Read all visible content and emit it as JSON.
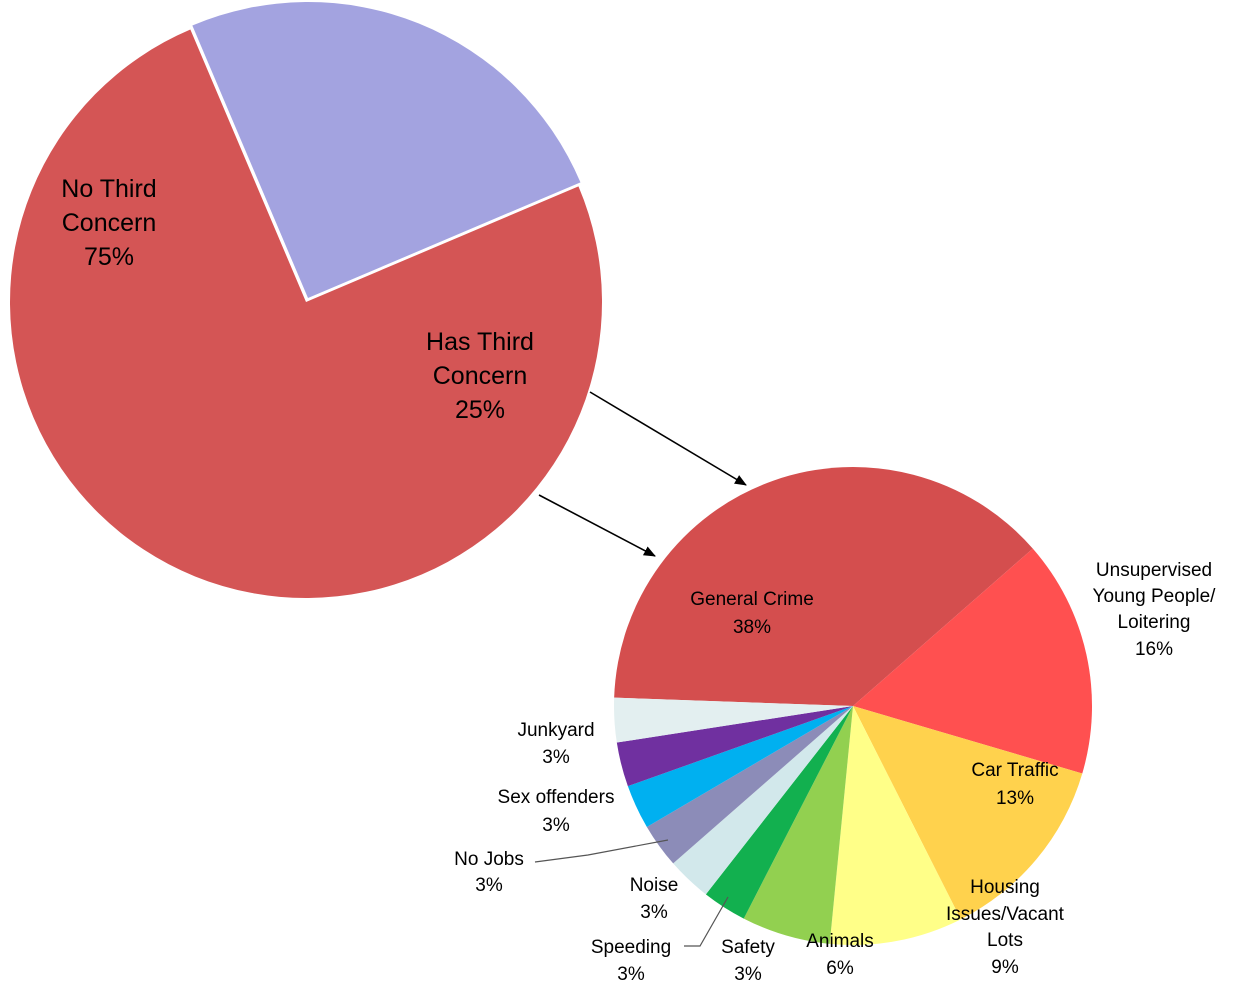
{
  "chart_data": [
    {
      "type": "pie",
      "title": "",
      "slices": [
        {
          "label": "No Third Concern",
          "value": 75,
          "value_label": "75%",
          "color": "#D45555"
        },
        {
          "label": "Has Third Concern",
          "value": 25,
          "value_label": "25%",
          "color": "#A3A3E0"
        }
      ],
      "exploded_slice": "Has Third Concern"
    },
    {
      "type": "pie",
      "title": "",
      "slices": [
        {
          "label": "General Crime",
          "value": 38,
          "value_label": "38%",
          "color": "#D44E4E"
        },
        {
          "label": "Unsupervised Young People/ Loitering",
          "value": 16,
          "value_label": "16%",
          "color": "#FF5050"
        },
        {
          "label": "Car Traffic",
          "value": 13,
          "value_label": "13%",
          "color": "#FFD24D"
        },
        {
          "label": "Housing Issues/Vacant Lots",
          "value": 9,
          "value_label": "9%",
          "color": "#FFFF88"
        },
        {
          "label": "Animals",
          "value": 6,
          "value_label": "6%",
          "color": "#92D050"
        },
        {
          "label": "Safety",
          "value": 3,
          "value_label": "3%",
          "color": "#12B04F"
        },
        {
          "label": "Speeding",
          "value": 3,
          "value_label": "3%",
          "color": "#D2E8EB"
        },
        {
          "label": "Noise",
          "value": 3,
          "value_label": "3%",
          "color": "#8C8CB8"
        },
        {
          "label": "No Jobs",
          "value": 3,
          "value_label": "3%",
          "color": "#00B0F0"
        },
        {
          "label": "Sex offenders",
          "value": 3,
          "value_label": "3%",
          "color": "#7030A0"
        },
        {
          "label": "Junkyard",
          "value": 3,
          "value_label": "3%",
          "color": "#E3EFF0"
        }
      ]
    }
  ]
}
